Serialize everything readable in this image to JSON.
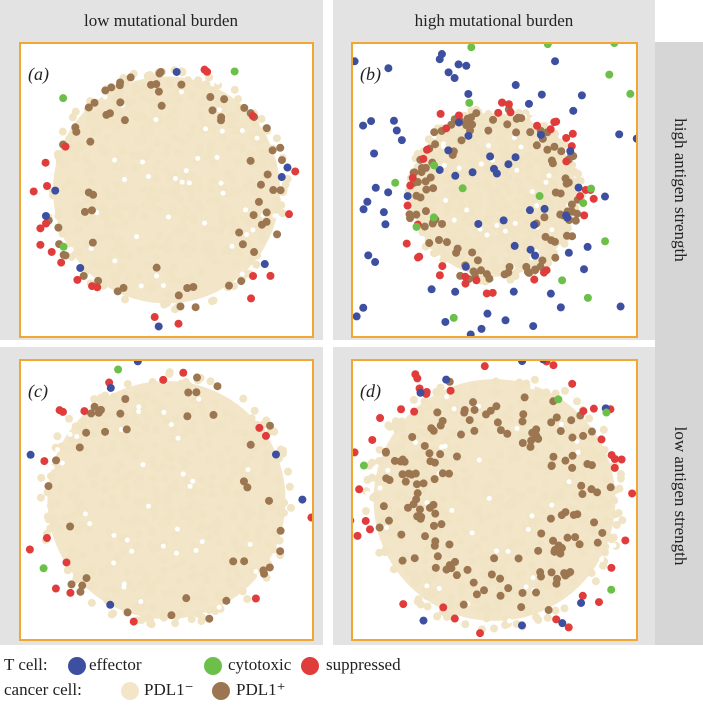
{
  "columns": [
    "low mutational burden",
    "high mutational burden"
  ],
  "rows": [
    "high  antigen strength",
    "low antigen strength"
  ],
  "panels": [
    "(a)",
    "(b)",
    "(c)",
    "(d)"
  ],
  "legend": {
    "t_cell_label": "T cell:",
    "t_cell": [
      "effector",
      "cytotoxic",
      "suppressed"
    ],
    "cancer_label": "cancer cell:",
    "cancer": [
      "PDL1⁻",
      "PDL1⁺"
    ]
  }
}
